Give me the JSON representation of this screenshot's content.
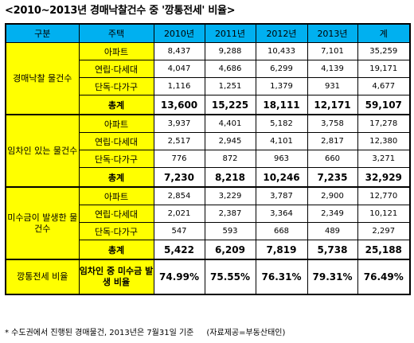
{
  "title": "<2010~2013년 경매낙찰건수 중 '깡통전세' 비율>",
  "header": {
    "col0": "구분",
    "col1": "주택",
    "col2": "2010년",
    "col3": "2011년",
    "col4": "2012년",
    "col5": "2013년",
    "col6": "계"
  },
  "groups": [
    {
      "label": "경매낙찰 물건수",
      "rows": [
        {
          "type": "아파트",
          "v": [
            "8,437",
            "9,288",
            "10,433",
            "7,101",
            "35,259"
          ]
        },
        {
          "type": "연립·다세대",
          "v": [
            "4,047",
            "4,686",
            "6,299",
            "4,139",
            "19,171"
          ]
        },
        {
          "type": "단독·다가구",
          "v": [
            "1,116",
            "1,251",
            "1,379",
            "931",
            "4,677"
          ]
        },
        {
          "type": "총계",
          "v": [
            "13,600",
            "15,225",
            "18,111",
            "12,171",
            "59,107"
          ]
        }
      ]
    },
    {
      "label": "임차인 있는 물건수",
      "rows": [
        {
          "type": "아파트",
          "v": [
            "3,937",
            "4,401",
            "5,182",
            "3,758",
            "17,278"
          ]
        },
        {
          "type": "연립·다세대",
          "v": [
            "2,517",
            "2,945",
            "4,101",
            "2,817",
            "12,380"
          ]
        },
        {
          "type": "단독·다가구",
          "v": [
            "776",
            "872",
            "963",
            "660",
            "3,271"
          ]
        },
        {
          "type": "총계",
          "v": [
            "7,230",
            "8,218",
            "10,246",
            "7,235",
            "32,929"
          ]
        }
      ]
    },
    {
      "label": "미수금이 발생한 물건수",
      "rows": [
        {
          "type": "아파트",
          "v": [
            "2,854",
            "3,229",
            "3,787",
            "2,900",
            "12,770"
          ]
        },
        {
          "type": "연립·다세대",
          "v": [
            "2,021",
            "2,387",
            "3,364",
            "2,349",
            "10,121"
          ]
        },
        {
          "type": "단독·다가구",
          "v": [
            "547",
            "593",
            "668",
            "489",
            "2,297"
          ]
        },
        {
          "type": "총계",
          "v": [
            "5,422",
            "6,209",
            "7,819",
            "5,738",
            "25,188"
          ]
        }
      ]
    }
  ],
  "ratio": {
    "label": "깡통전세 비율",
    "type": "임차인 중 미수금 발생 비율",
    "v": [
      "74.99%",
      "75.55%",
      "76.31%",
      "79.31%",
      "76.49%"
    ]
  },
  "footer": {
    "note": "* 수도권에서 진행된 경매물건, 2013년은 7월31일 기준",
    "source": "(자료제공=부동산태인)"
  }
}
